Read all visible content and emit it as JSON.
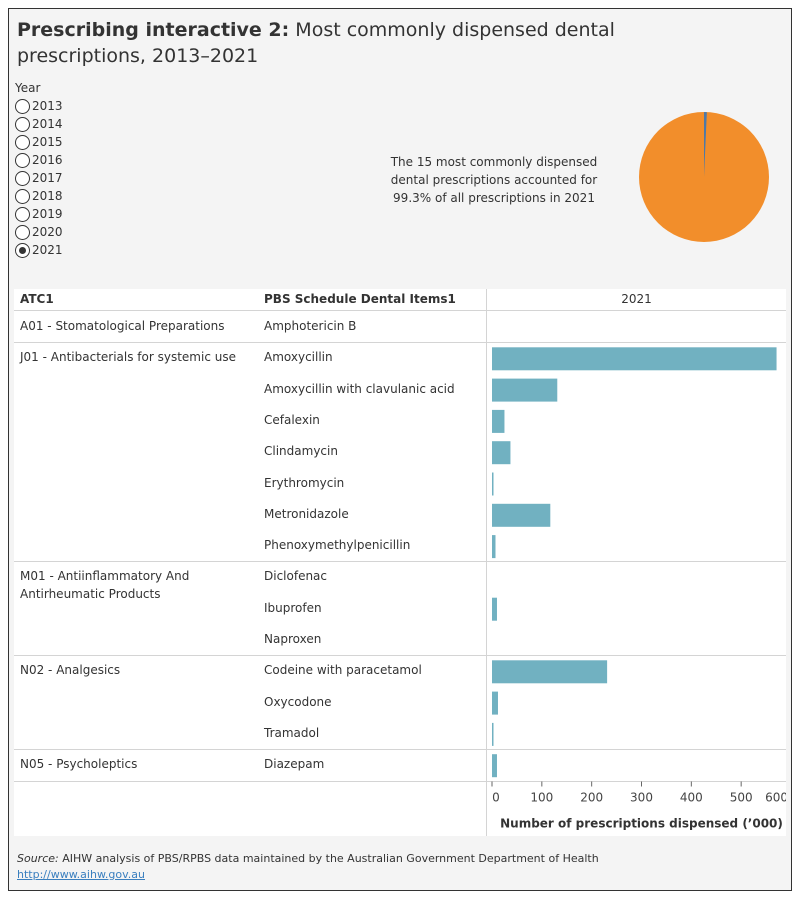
{
  "title": {
    "bold": "Prescribing interactive 2:",
    "rest": " Most commonly dispensed dental prescriptions, 2013–2021"
  },
  "year_filter": {
    "label": "Year",
    "options": [
      "2013",
      "2014",
      "2015",
      "2016",
      "2017",
      "2018",
      "2019",
      "2020",
      "2021"
    ],
    "selected": "2021"
  },
  "summary": {
    "text": "The 15 most commonly dispensed dental prescriptions accounted for 99.3% of all prescriptions in 2021",
    "pie": {
      "share_top15_percent": 99.3,
      "colors": {
        "top15": "#f28e2b",
        "other": "#4e79a7"
      }
    }
  },
  "table": {
    "col_atc": "ATC1",
    "col_item": "PBS Schedule Dental Items1",
    "col_year": "2021"
  },
  "chart_data": {
    "type": "bar",
    "orientation": "horizontal",
    "xlabel": "Number of prescriptions dispensed (’000)",
    "xlim": [
      0,
      600
    ],
    "ticks": [
      "0",
      "100",
      "200",
      "300",
      "400",
      "500",
      "600"
    ],
    "bar_color": "#71b1c1",
    "groups": [
      {
        "atc": "A01 - Stomatological Preparations",
        "items": [
          {
            "name": "Amphotericin B",
            "value": 0
          }
        ]
      },
      {
        "atc": "J01 - Antibacterials for systemic use",
        "items": [
          {
            "name": "Amoxycillin",
            "value": 571
          },
          {
            "name": "Amoxycillin with clavulanic acid",
            "value": 131
          },
          {
            "name": "Cefalexin",
            "value": 25
          },
          {
            "name": "Clindamycin",
            "value": 37
          },
          {
            "name": "Erythromycin",
            "value": 3
          },
          {
            "name": "Metronidazole",
            "value": 117
          },
          {
            "name": "Phenoxymethylpenicillin",
            "value": 7
          }
        ]
      },
      {
        "atc": "M01 - Antiinflammatory And Antirheumatic Products",
        "items": [
          {
            "name": "Diclofenac",
            "value": 0
          },
          {
            "name": "Ibuprofen",
            "value": 10
          },
          {
            "name": "Naproxen",
            "value": 0
          }
        ]
      },
      {
        "atc": "N02 - Analgesics",
        "items": [
          {
            "name": "Codeine with paracetamol",
            "value": 231
          },
          {
            "name": "Oxycodone",
            "value": 12
          },
          {
            "name": "Tramadol",
            "value": 2
          }
        ]
      },
      {
        "atc": "N05 - Psycholeptics",
        "items": [
          {
            "name": "Diazepam",
            "value": 10
          }
        ]
      }
    ]
  },
  "source": {
    "label": "Source:",
    "text": " AIHW analysis of PBS/RPBS data maintained by the Australian Government Department of Health",
    "link": "http://www.aihw.gov.au"
  }
}
